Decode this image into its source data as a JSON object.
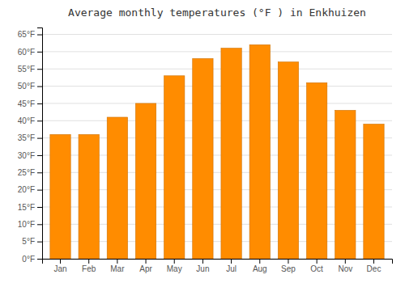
{
  "chart_data": {
    "type": "bar",
    "title": "Average monthly temperatures (°F ) in Enkhuizen",
    "categories": [
      "Jan",
      "Feb",
      "Mar",
      "Apr",
      "May",
      "Jun",
      "Jul",
      "Aug",
      "Sep",
      "Oct",
      "Nov",
      "Dec"
    ],
    "values": [
      36,
      36,
      41,
      45,
      53,
      58,
      61,
      62,
      57,
      51,
      43,
      39
    ],
    "color": "#FF8C00",
    "ylim": [
      0,
      67
    ],
    "yticks": [
      {
        "value": 0,
        "label": "0°F"
      },
      {
        "value": 5,
        "label": "5°F"
      },
      {
        "value": 10,
        "label": "10°F"
      },
      {
        "value": 15,
        "label": "15°F"
      },
      {
        "value": 20,
        "label": "20°F"
      },
      {
        "value": 25,
        "label": "25°F"
      },
      {
        "value": 30,
        "label": "30°F"
      },
      {
        "value": 35,
        "label": "35°F"
      },
      {
        "value": 40,
        "label": "40°F"
      },
      {
        "value": 45,
        "label": "45°F"
      },
      {
        "value": 50,
        "label": "50°F"
      },
      {
        "value": 55,
        "label": "55°F"
      },
      {
        "value": 60,
        "label": "60°F"
      },
      {
        "value": 65,
        "label": "65°F"
      }
    ],
    "grid": true
  }
}
